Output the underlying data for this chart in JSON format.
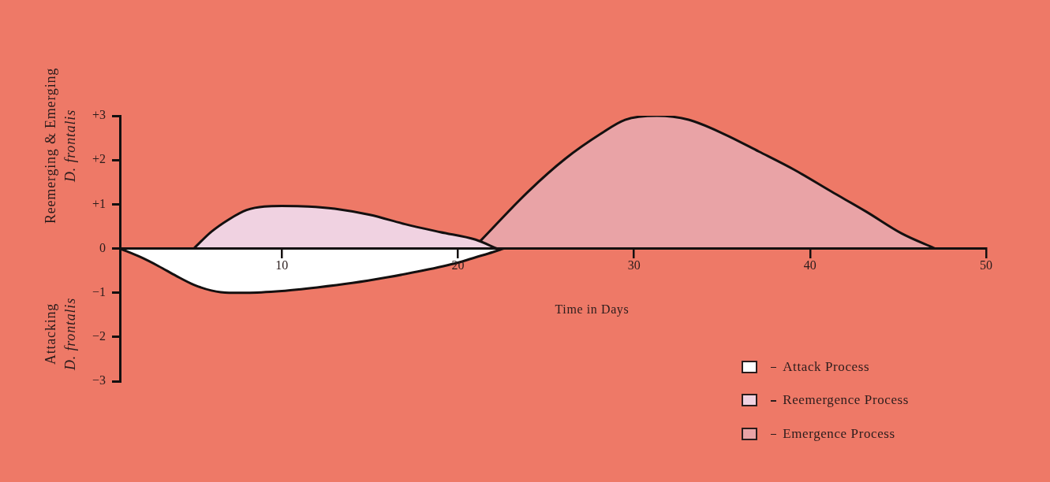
{
  "chart_data": {
    "type": "area",
    "ylabel": "Reemerging & Emerging\nD. frontalis",
    "xlabel": "Time in Days",
    "annotations": [
      "Attacking\nD. frontalis"
    ],
    "xlim": [
      0.8,
      50
    ],
    "xticks": [
      10,
      20,
      30,
      40,
      50
    ],
    "ylim": [
      -3,
      3
    ],
    "yticks": [
      {
        "value": 3,
        "label": "+3"
      },
      {
        "value": 2,
        "label": "+2"
      },
      {
        "value": 1,
        "label": "+1"
      },
      0,
      {
        "value": -1,
        "label": "−1"
      },
      {
        "value": -2,
        "label": "−2"
      },
      {
        "value": -3,
        "label": "−3"
      }
    ],
    "legend": "bottom right",
    "series": [
      {
        "name": "Attack Process",
        "color": "#ffffff",
        "x": [
          0.8,
          2,
          3,
          4,
          5,
          6,
          7,
          8,
          10,
          12,
          14,
          16,
          18,
          20,
          21,
          22,
          22.6
        ],
        "values": [
          0,
          -0.2,
          -0.4,
          -0.62,
          -0.82,
          -0.95,
          -1,
          -1,
          -0.96,
          -0.88,
          -0.78,
          -0.65,
          -0.5,
          -0.32,
          -0.2,
          -0.08,
          0
        ]
      },
      {
        "name": "Reemergence Process",
        "color": "#f0d2e1",
        "x": [
          5,
          6,
          7,
          8,
          9,
          10,
          11.5,
          13,
          15,
          17,
          19,
          21,
          22.2
        ],
        "values": [
          0,
          0.38,
          0.66,
          0.87,
          0.95,
          0.96,
          0.95,
          0.9,
          0.76,
          0.55,
          0.37,
          0.2,
          0
        ]
      },
      {
        "name": "Emergence Process",
        "color": "#e9a3a6",
        "x": [
          21.3,
          24,
          26.1,
          28.1,
          29.5,
          31.3,
          33.1,
          35.1,
          37.1,
          39.1,
          41.2,
          43.2,
          45.2,
          47.1
        ],
        "values": [
          0.18,
          1.29,
          2.03,
          2.59,
          2.91,
          3,
          2.91,
          2.59,
          2.19,
          1.78,
          1.29,
          0.83,
          0.34,
          0
        ]
      }
    ]
  }
}
